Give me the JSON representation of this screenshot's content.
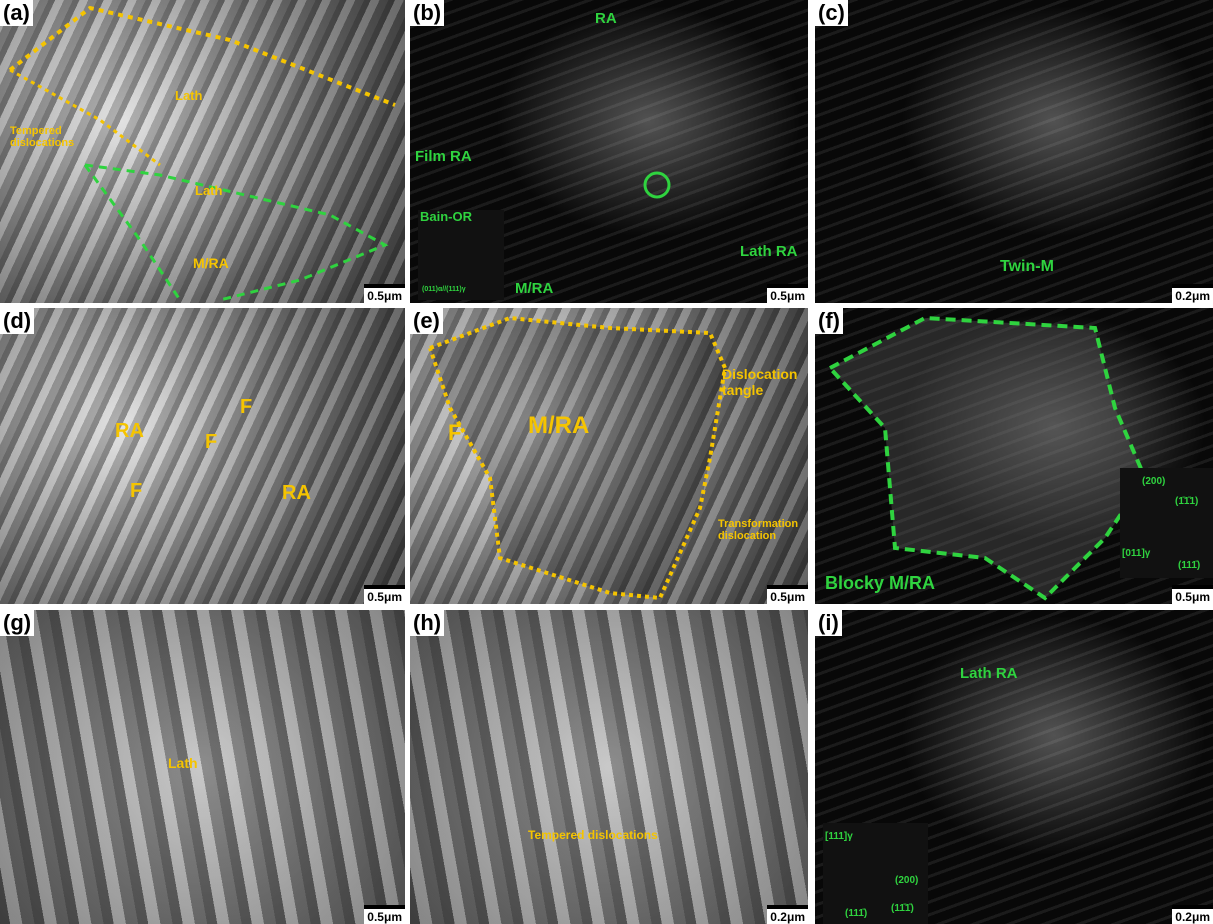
{
  "panels": [
    {
      "label": "(a)",
      "scale": "0.5μm",
      "annotations": [
        "Lath",
        "Tempered dislocations",
        "Lath",
        "M/RA"
      ]
    },
    {
      "label": "(b)",
      "scale": "0.5μm",
      "annotations": [
        "RA",
        "Film RA",
        "Lath RA",
        "M/RA",
        "Bain-OR",
        "(011)α//(111)γ"
      ]
    },
    {
      "label": "(c)",
      "scale": "0.2μm",
      "annotations": [
        "Twin-M"
      ]
    },
    {
      "label": "(d)",
      "scale": "0.5μm",
      "annotations": [
        "RA",
        "F",
        "F",
        "F",
        "RA"
      ]
    },
    {
      "label": "(e)",
      "scale": "0.5μm",
      "annotations": [
        "F",
        "M/RA",
        "Dislocation tangle",
        "Transformation dislocation"
      ]
    },
    {
      "label": "(f)",
      "scale": "0.5μm",
      "annotations": [
        "Blocky M/RA",
        "(200)",
        "(1̄1̄1)",
        "[011]γ",
        "(111̄)"
      ]
    },
    {
      "label": "(g)",
      "scale": "0.5μm",
      "annotations": [
        "Lath"
      ]
    },
    {
      "label": "(h)",
      "scale": "0.2μm",
      "annotations": [
        "Tempered dislocations"
      ]
    },
    {
      "label": "(i)",
      "scale": "0.2μm",
      "annotations": [
        "Lath RA",
        "[111]γ",
        "(200)",
        "(111̄)",
        "(11̄1̄)"
      ]
    }
  ]
}
